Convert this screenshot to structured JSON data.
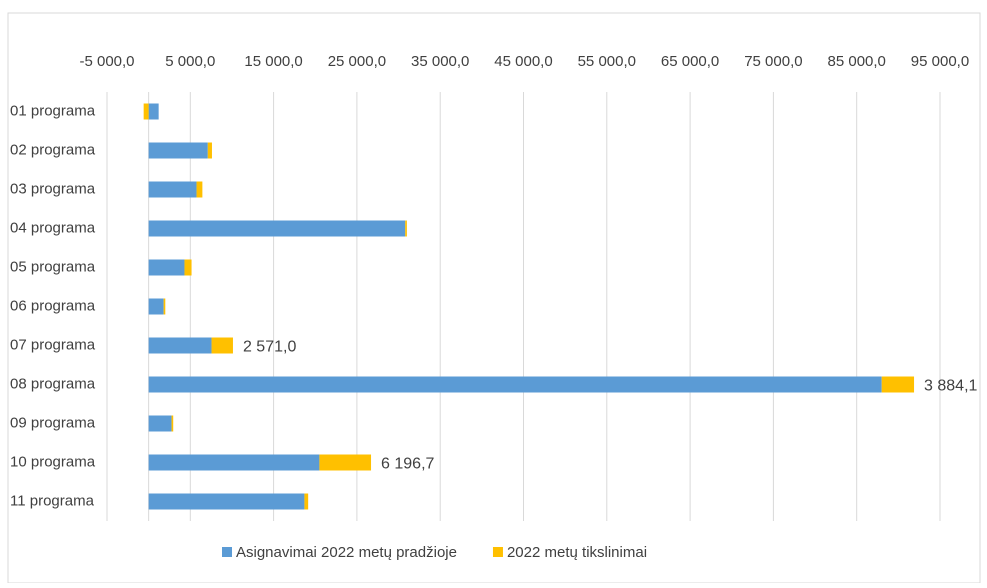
{
  "chart_data": {
    "type": "stacked-bar-horizontal",
    "categories": [
      "01 programa",
      "02 programa",
      "03 programa",
      "04 programa",
      "05 programa",
      "06 programa",
      "07 programa",
      "08 programa",
      "09 programa",
      "10 programa",
      "11 programa"
    ],
    "series": [
      {
        "name": "Asignavimai 2022 metų pradžioje",
        "color": "#5b9bd5",
        "values": [
          1200,
          7100,
          5750,
          30800,
          4300,
          1800,
          7550,
          88000,
          2750,
          20500,
          18700
        ]
      },
      {
        "name": "2022 metų tikslinimai",
        "color": "#ffc000",
        "values": [
          -600,
          500,
          700,
          200,
          850,
          200,
          2571,
          3884.1,
          200,
          6196.7,
          450
        ],
        "value_labels": [
          null,
          null,
          null,
          null,
          null,
          null,
          "2 571,0",
          "3 884,1",
          null,
          "6 196,7",
          null
        ]
      }
    ],
    "xlim": [
      -5000,
      95000
    ],
    "xticks": [
      {
        "value": -5000,
        "label": "-5 000,0"
      },
      {
        "value": 5000,
        "label": "5 000,0"
      },
      {
        "value": 15000,
        "label": "15 000,0"
      },
      {
        "value": 25000,
        "label": "25 000,0"
      },
      {
        "value": 35000,
        "label": "35 000,0"
      },
      {
        "value": 45000,
        "label": "45 000,0"
      },
      {
        "value": 55000,
        "label": "55 000,0"
      },
      {
        "value": 65000,
        "label": "65 000,0"
      },
      {
        "value": 75000,
        "label": "75 000,0"
      },
      {
        "value": 85000,
        "label": "85 000,0"
      },
      {
        "value": 95000,
        "label": "95 000,0"
      }
    ],
    "grid": true,
    "legend": "bottom"
  }
}
